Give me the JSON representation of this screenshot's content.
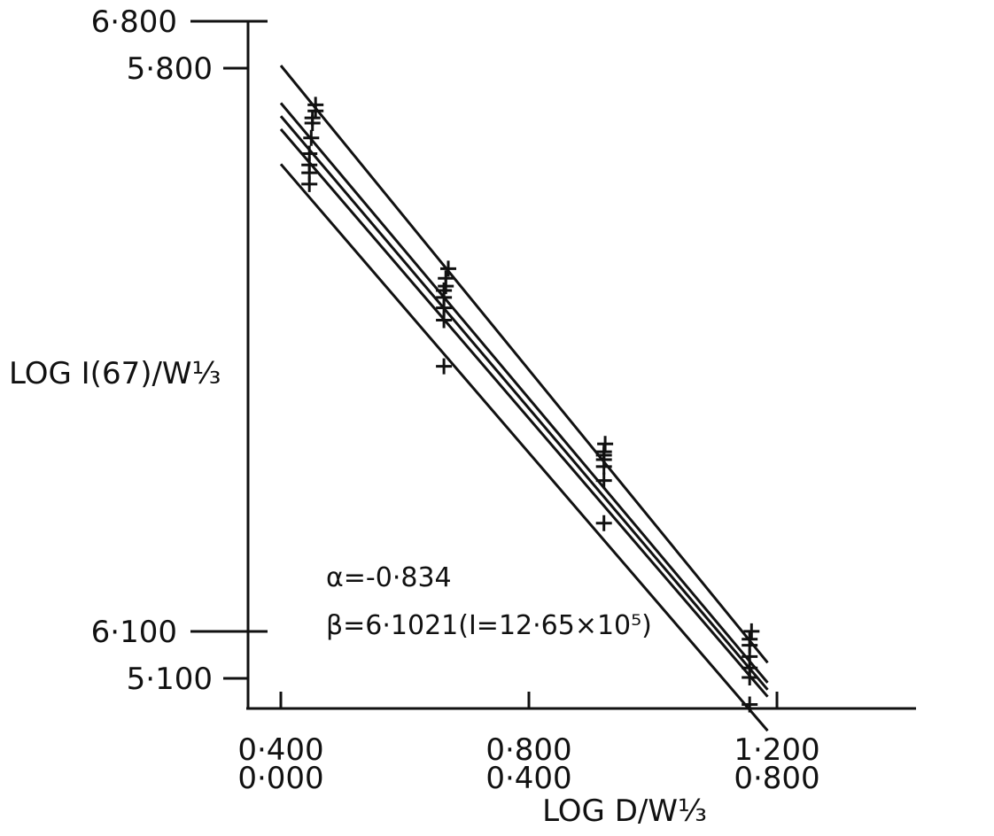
{
  "chart_data": {
    "type": "scatter",
    "title": "",
    "xlabel": "LOG D/W⅓",
    "ylabel": "LOG I(67)/W⅓",
    "x_ticks": [
      {
        "value": 0.4,
        "labels": [
          "0·400",
          "0·000"
        ]
      },
      {
        "value": 0.8,
        "labels": [
          "0·800",
          "0·400"
        ]
      },
      {
        "value": 1.2,
        "labels": [
          "1·200",
          "0·800"
        ]
      }
    ],
    "y_ticks": [
      {
        "value": 5.8,
        "label": "5·800",
        "scale": "inner"
      },
      {
        "value": 5.1,
        "label": "5·100",
        "scale": "inner"
      },
      {
        "value": 6.8,
        "label": "6·800",
        "scale": "outer"
      },
      {
        "value": 6.1,
        "label": "6·100",
        "scale": "outer"
      }
    ],
    "xlim": [
      0.37,
      1.19
    ],
    "ylim": [
      5.065,
      5.8
    ],
    "series": [
      {
        "x": [
          0.4,
          1.185
        ],
        "y": [
          5.803,
          5.118
        ]
      },
      {
        "x": [
          0.4,
          1.185
        ],
        "y": [
          5.76,
          5.095
        ]
      },
      {
        "x": [
          0.4,
          1.185
        ],
        "y": [
          5.745,
          5.087
        ]
      },
      {
        "x": [
          0.4,
          1.185
        ],
        "y": [
          5.73,
          5.079
        ]
      },
      {
        "x": [
          0.4,
          1.185
        ],
        "y": [
          5.69,
          5.04
        ]
      }
    ],
    "points": {
      "x": [
        0.456,
        0.456,
        0.451,
        0.451,
        0.449,
        0.446,
        0.446,
        0.446,
        0.446,
        0.67,
        0.666,
        0.666,
        0.663,
        0.663,
        0.663,
        0.663,
        0.663,
        0.923,
        0.921,
        0.921,
        0.921,
        0.921,
        0.921,
        0.921,
        1.159,
        1.156,
        1.156,
        1.156,
        1.156,
        1.156,
        1.156
      ],
      "y": [
        5.758,
        5.751,
        5.743,
        5.737,
        5.72,
        5.702,
        5.689,
        5.68,
        5.667,
        5.57,
        5.559,
        5.55,
        5.545,
        5.537,
        5.525,
        5.511,
        5.458,
        5.369,
        5.36,
        5.356,
        5.351,
        5.343,
        5.327,
        5.278,
        5.154,
        5.145,
        5.138,
        5.125,
        5.112,
        5.101,
        5.07
      ]
    },
    "annotations": [
      "α=-0·834",
      "β=6·1021(I=12·65×10⁵)"
    ]
  }
}
